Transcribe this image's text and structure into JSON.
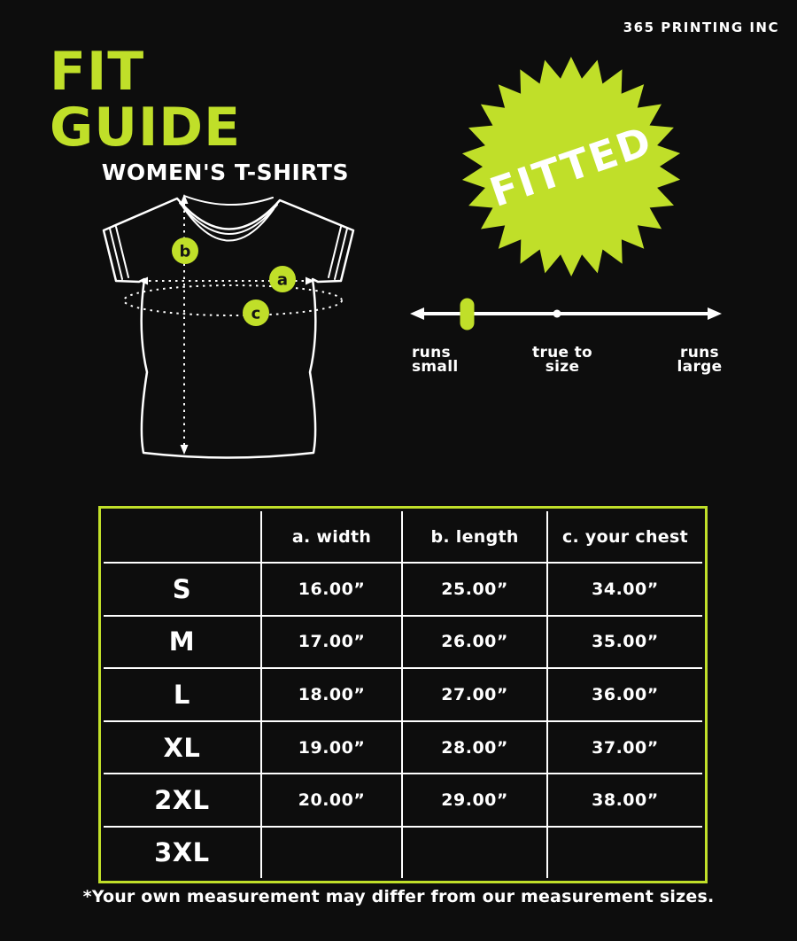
{
  "brand": "365 PRINTING INC",
  "header": {
    "title": "FIT GUIDE",
    "subtitle": "WOMEN'S T-SHIRTS"
  },
  "badge": {
    "label": "FITTED"
  },
  "diagram": {
    "markers": {
      "a": "a",
      "b": "b",
      "c": "c"
    }
  },
  "scale": {
    "labels": [
      "runs\nsmall",
      "true to\nsize",
      "runs\nlarge"
    ],
    "marker_position": "runs small"
  },
  "table": {
    "headers": [
      "",
      "a. width",
      "b. length",
      "c. your chest"
    ],
    "rows": [
      {
        "size": "S",
        "width": "16.00”",
        "length": "25.00”",
        "chest": "34.00”"
      },
      {
        "size": "M",
        "width": "17.00”",
        "length": "26.00”",
        "chest": "35.00”"
      },
      {
        "size": "L",
        "width": "18.00”",
        "length": "27.00”",
        "chest": "36.00”"
      },
      {
        "size": "XL",
        "width": "19.00”",
        "length": "28.00”",
        "chest": "37.00”"
      },
      {
        "size": "2XL",
        "width": "20.00”",
        "length": "29.00”",
        "chest": "38.00”"
      },
      {
        "size": "3XL",
        "width": "",
        "length": "",
        "chest": ""
      }
    ]
  },
  "footnote": "*Your own measurement may differ from our measurement sizes.",
  "colors": {
    "accent": "#c0df29",
    "background": "#0d0d0d",
    "text": "#ffffff"
  }
}
